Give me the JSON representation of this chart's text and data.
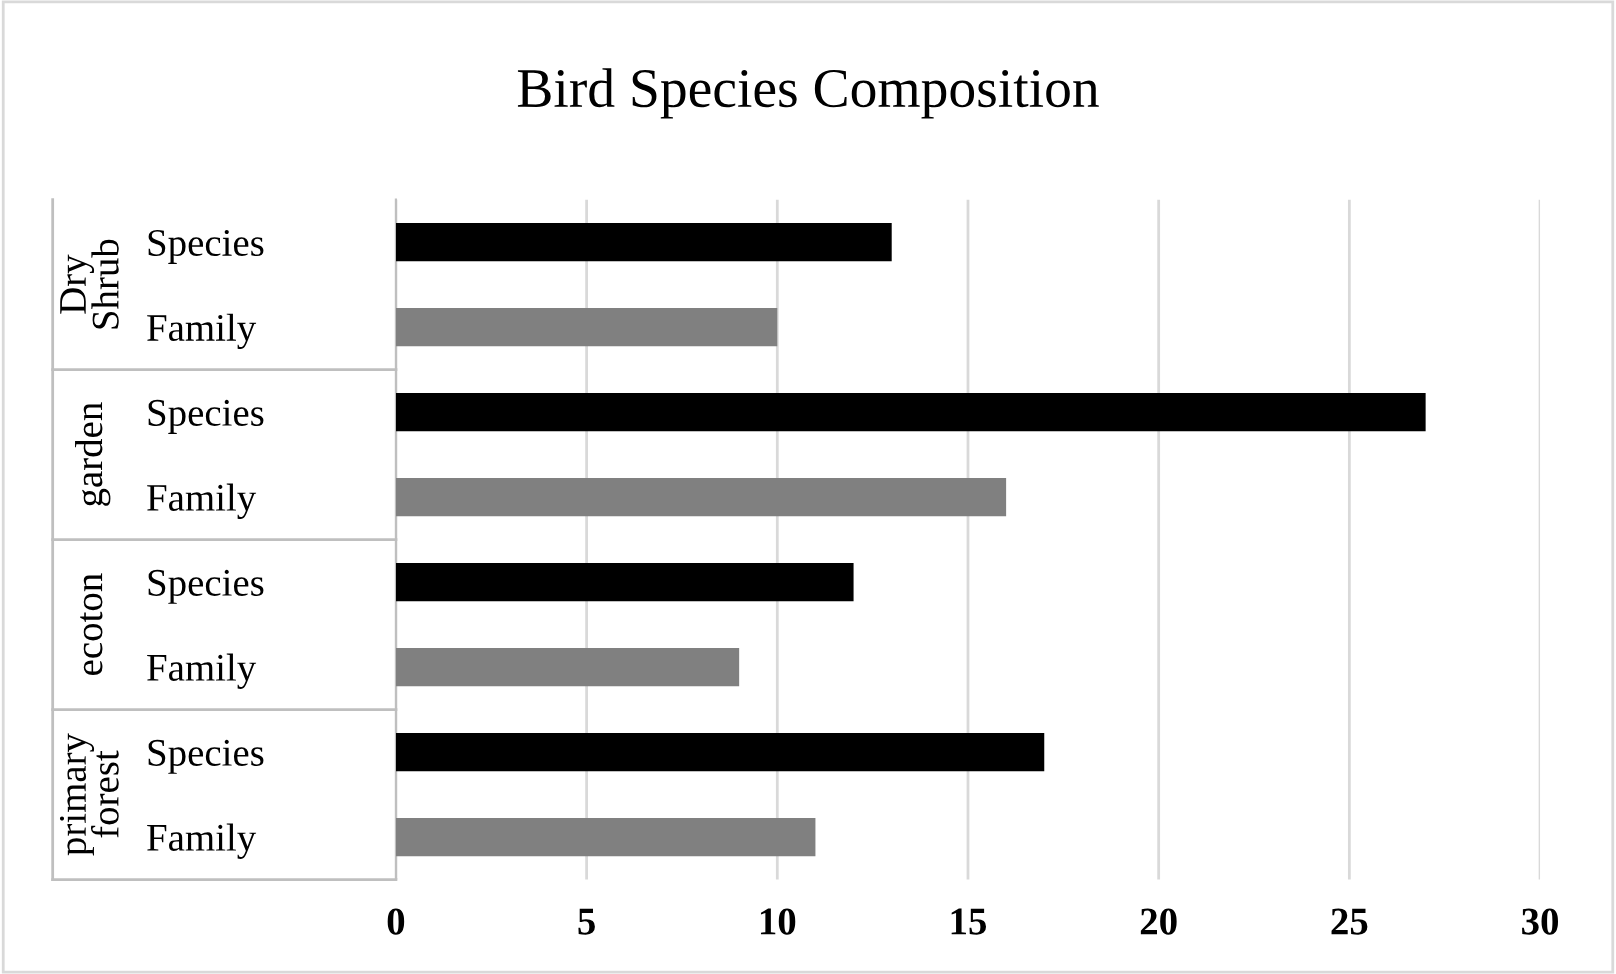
{
  "chart_data": {
    "type": "bar",
    "orientation": "horizontal",
    "title": "Bird Species Composition",
    "categories": [
      "Species",
      "Family",
      "Species",
      "Family",
      "Species",
      "Family",
      "Species",
      "Family"
    ],
    "values": [
      13,
      10,
      27,
      16,
      12,
      9,
      17,
      11
    ],
    "colors": [
      "#000000",
      "#808080",
      "#000000",
      "#808080",
      "#000000",
      "#808080",
      "#000000",
      "#808080"
    ],
    "annotations": [
      "Dry\nShrub",
      "garden",
      "ecoton",
      "primary\nforest"
    ],
    "xlim": [
      0,
      30
    ],
    "xticks": [
      0,
      5,
      10,
      15,
      20,
      25,
      30
    ],
    "grid": "x"
  }
}
